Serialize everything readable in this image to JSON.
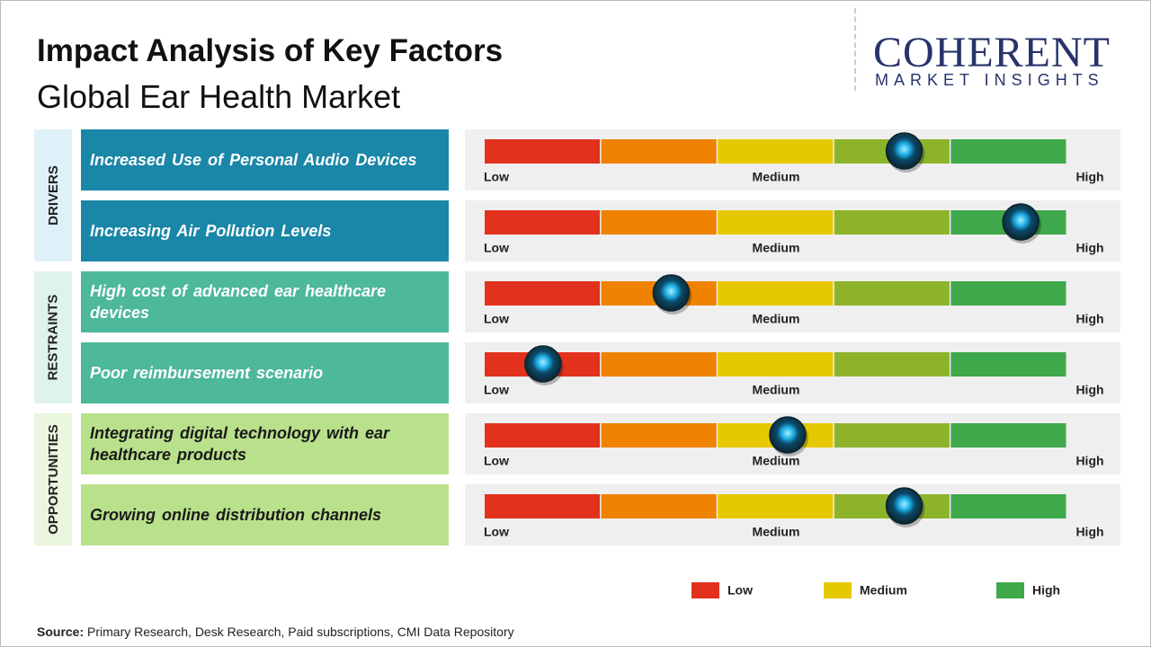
{
  "header": {
    "title": "Impact Analysis of Key Factors",
    "subtitle": "Global Ear Health Market"
  },
  "logo": {
    "brand": "COHERENT",
    "tagline": "MARKET INSIGHTS"
  },
  "scale": {
    "xlim": [
      0,
      5
    ],
    "labels": [
      "Low",
      "Medium",
      "High"
    ],
    "segment_colors": [
      "#e2321e",
      "#ef8200",
      "#e6c800",
      "#8db32a",
      "#3fa84a"
    ]
  },
  "groups": [
    {
      "name": "DRIVERS",
      "color": "#1a86a8",
      "text_color": "#ffffff",
      "label_bg": "#dff1f8",
      "factors": [
        {
          "label": "Increased Use of Personal Audio Devices",
          "value": 3.6
        },
        {
          "label": "Increasing Air Pollution Levels",
          "value": 4.6
        }
      ]
    },
    {
      "name": "RESTRAINTS",
      "color": "#4db89a",
      "text_color": "#ffffff",
      "label_bg": "#dff3ec",
      "factors": [
        {
          "label": "High cost of advanced ear healthcare devices",
          "value": 1.6
        },
        {
          "label": "Poor reimbursement  scenario",
          "value": 0.5
        }
      ]
    },
    {
      "name": "OPPORTUNITIES",
      "color": "#b9e08b",
      "text_color": "#1a1a1a",
      "label_bg": "#eaf6dd",
      "factors": [
        {
          "label": "Integrating digital technology with ear healthcare products",
          "value": 2.6
        },
        {
          "label": "Growing online distribution channels",
          "value": 3.6
        }
      ]
    }
  ],
  "legend": [
    {
      "name": "Low",
      "color": "#e2321e"
    },
    {
      "name": "Medium",
      "color": "#e6c800"
    },
    {
      "name": "High",
      "color": "#3fa84a"
    }
  ],
  "source": {
    "label": "Source:",
    "text": "Primary Research, Desk Research, Paid subscriptions, CMI Data Repository"
  }
}
